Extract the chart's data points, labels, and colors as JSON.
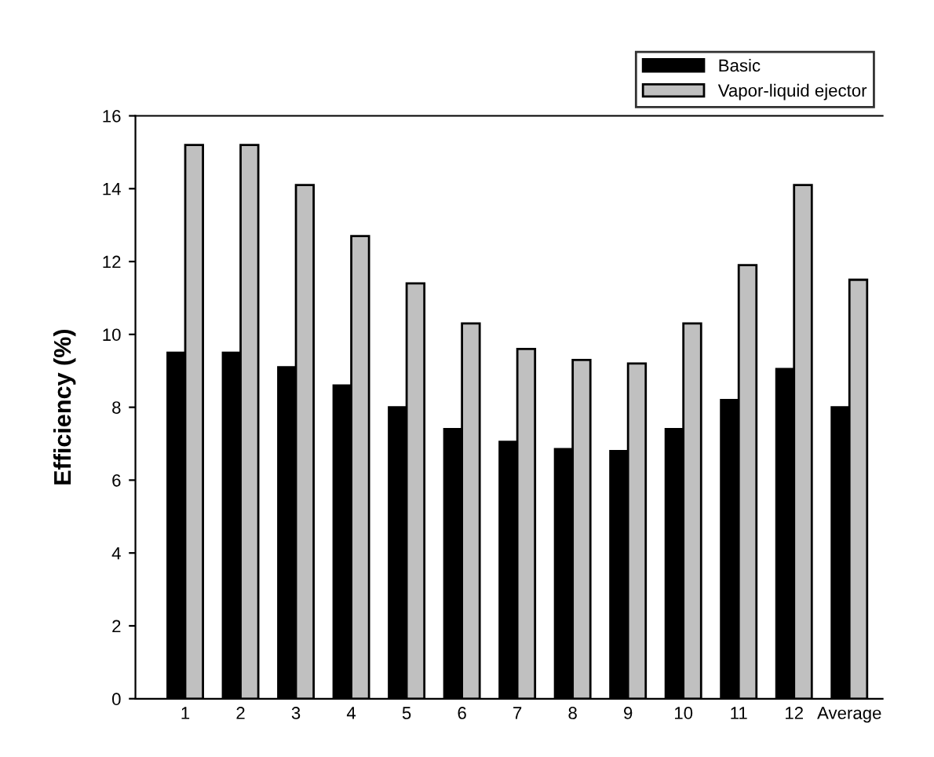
{
  "chart_data": {
    "type": "bar",
    "ylabel": "Efficiency (%)",
    "categories": [
      "1",
      "2",
      "3",
      "4",
      "5",
      "6",
      "7",
      "8",
      "9",
      "10",
      "11",
      "12",
      "Average"
    ],
    "series": [
      {
        "name": "Basic",
        "color": "#000000",
        "values": [
          9.5,
          9.5,
          9.1,
          8.6,
          8.0,
          7.4,
          7.05,
          6.85,
          6.8,
          7.4,
          8.2,
          9.05,
          8.0
        ]
      },
      {
        "name": "Vapor-liquid ejector",
        "color": "#c0c0c0",
        "values": [
          15.2,
          15.2,
          14.1,
          12.7,
          11.4,
          10.3,
          9.6,
          9.3,
          9.2,
          10.3,
          11.9,
          14.1,
          11.5
        ]
      }
    ],
    "ylim": [
      0,
      16
    ],
    "yticks": [
      0,
      2,
      4,
      6,
      8,
      10,
      12,
      14,
      16
    ],
    "grid": false,
    "legend": "top right"
  }
}
